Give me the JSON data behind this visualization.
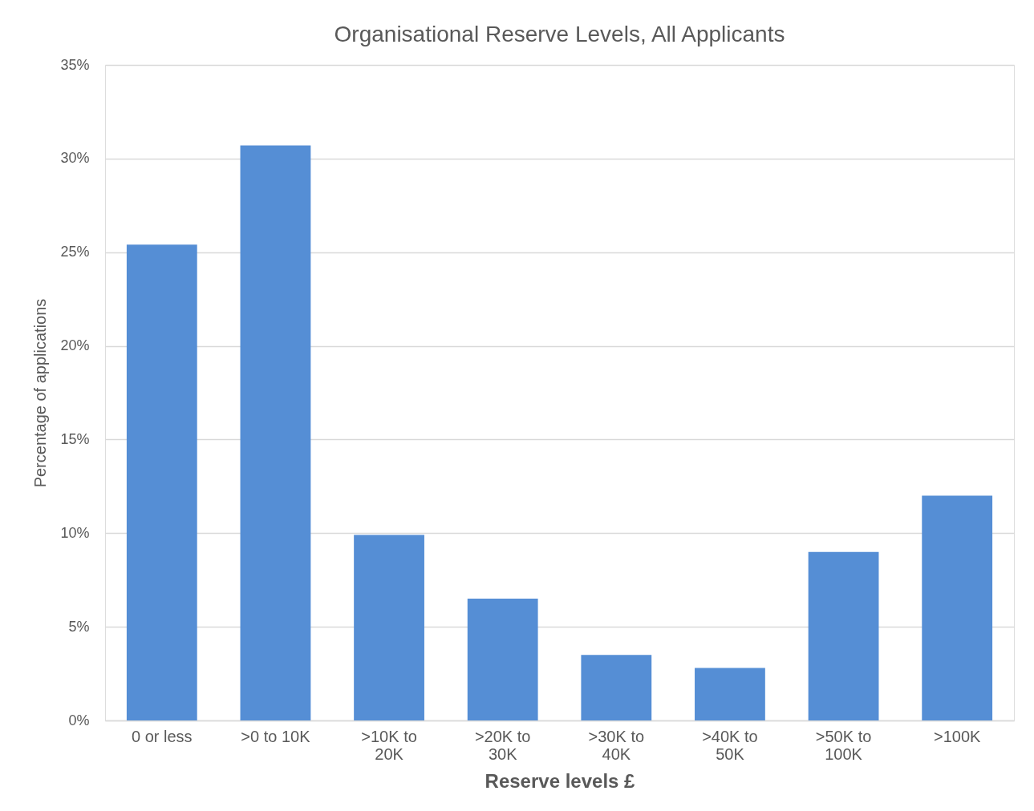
{
  "chart_data": {
    "type": "bar",
    "title": "Organisational Reserve Levels, All Applicants",
    "xlabel": "Reserve levels £",
    "ylabel": "Percentage of applications",
    "categories": [
      "0 or less",
      ">0 to 10K",
      ">10K to 20K",
      ">20K to 30K",
      ">30K to 40K",
      ">40K to 50K",
      ">50K to 100K",
      ">100K"
    ],
    "values": [
      25.4,
      30.7,
      9.9,
      6.5,
      3.5,
      2.8,
      9.0,
      12.0
    ],
    "color": "#558ed5",
    "ylim": [
      0,
      35
    ],
    "yticks": [
      {
        "value": 0,
        "label": "0%"
      },
      {
        "value": 5,
        "label": "5%"
      },
      {
        "value": 10,
        "label": "10%"
      },
      {
        "value": 15,
        "label": "15%"
      },
      {
        "value": 20,
        "label": "20%"
      },
      {
        "value": 25,
        "label": "25%"
      },
      {
        "value": 30,
        "label": "30%"
      },
      {
        "value": 35,
        "label": "35%"
      }
    ],
    "grid": "y"
  }
}
